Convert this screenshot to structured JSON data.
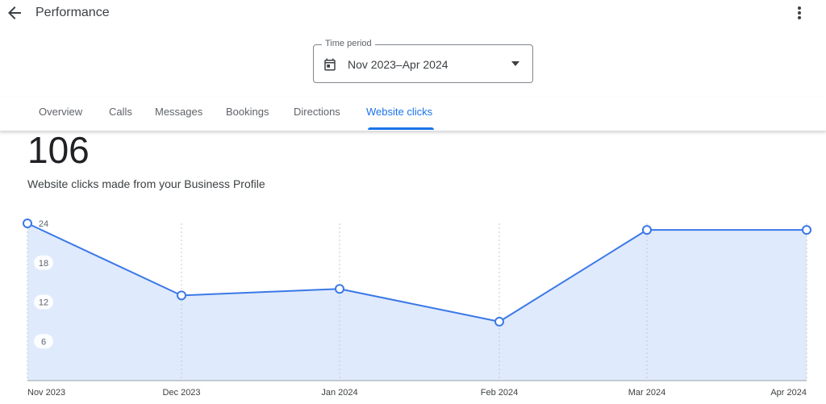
{
  "header": {
    "title": "Performance",
    "back_icon": "arrow-back-icon",
    "more_icon": "more-vert-icon"
  },
  "time_period": {
    "label": "Time period",
    "value": "Nov 2023–Apr 2024",
    "icon": "calendar-icon",
    "dropdown_icon": "arrow-drop-down-icon"
  },
  "tabs": [
    {
      "label": "Overview",
      "active": false
    },
    {
      "label": "Calls",
      "active": false
    },
    {
      "label": "Messages",
      "active": false
    },
    {
      "label": "Bookings",
      "active": false
    },
    {
      "label": "Directions",
      "active": false
    },
    {
      "label": "Website clicks",
      "active": true
    }
  ],
  "summary": {
    "total": "106",
    "description": "Website clicks made from your Business Profile"
  },
  "colors": {
    "accent": "#1a73e8",
    "line": "#3b78e7",
    "area_fill": "#dfeafc",
    "text": "#202124",
    "muted": "#5f6368"
  },
  "chart_data": {
    "type": "area",
    "x": [
      "Nov 2023",
      "Dec 2023",
      "Jan 2024",
      "Feb 2024",
      "Mar 2024",
      "Apr 2024"
    ],
    "series": [
      {
        "values": [
          24,
          13,
          14,
          9,
          23,
          23
        ]
      }
    ],
    "y_ticks": [
      6,
      12,
      18,
      24
    ],
    "ylim": [
      0,
      24
    ],
    "grid": "vertical dashed",
    "markers": "hollow circles"
  }
}
